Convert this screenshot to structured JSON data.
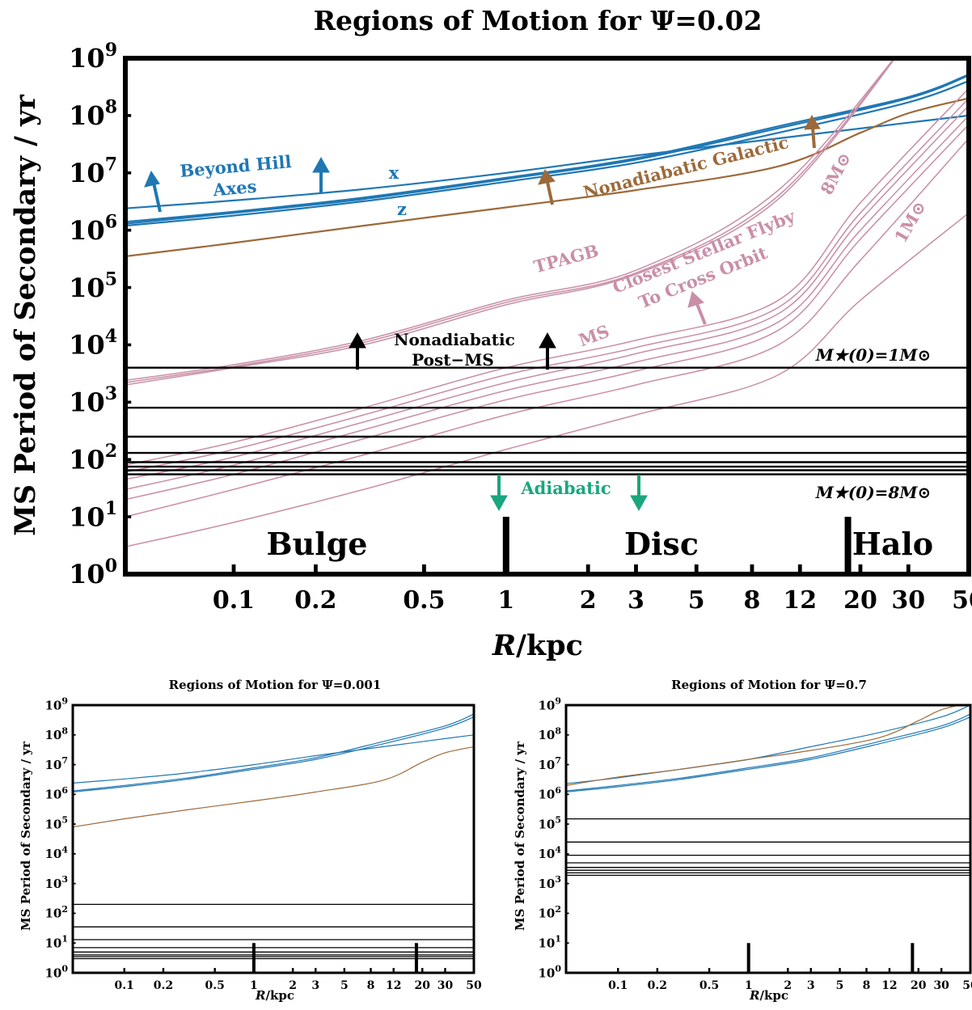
{
  "colors": {
    "hill": "#1f77b4",
    "galactic": "#9c6a3a",
    "stellar": "#c98fa8",
    "adiabatic": "#1aa67e",
    "axes": "#000000"
  },
  "xtick_labels": [
    "0.1",
    "0.2",
    "0.5",
    "1",
    "2",
    "3",
    "5",
    "8",
    "12",
    "20",
    "30",
    "50"
  ],
  "ytick_exponents": [
    "0",
    "1",
    "2",
    "3",
    "4",
    "5",
    "6",
    "7",
    "8",
    "9"
  ],
  "ytick_base": "10",
  "main": {
    "title": "Regions of Motion for Ψ=0.02",
    "xlabel": "R/kpc",
    "ylabel": "MS Period of Secondary / yr",
    "annotations": {
      "beyond_hill_1": "Beyond Hill",
      "beyond_hill_2": "Axes",
      "x": "x",
      "z": "z",
      "nonadiabatic_galactic": "Nonadiabatic Galactic",
      "tpagb": "TPAGB",
      "flyby_1": "Closest Stellar Flyby",
      "flyby_2": "To Cross Orbit",
      "ms": "MS",
      "m8": "8M⊙",
      "m1": "1M⊙",
      "nonadiabatic_postms_1": "Nonadiabatic",
      "nonadiabatic_postms_2": "Post−MS",
      "mstar1": "M★(0)=1M⊙",
      "mstar8": "M★(0)=8M⊙",
      "adiabatic": "Adiabatic",
      "bulge": "Bulge",
      "disc": "Disc",
      "halo": "Halo"
    }
  },
  "small_left": {
    "title": "Regions of Motion for Ψ=0.001",
    "xlabel": "R/kpc",
    "ylabel": "MS Period of Secondary / yr"
  },
  "small_right": {
    "title": "Regions of Motion for Ψ=0.7",
    "xlabel": "R/kpc",
    "ylabel": "MS Period of Secondary / yr"
  },
  "chart_data": [
    {
      "type": "line",
      "panel": "main",
      "title": "Regions of Motion for Ψ=0.02",
      "xlabel": "R/kpc",
      "ylabel": "MS Period of Secondary / yr",
      "xscale": "log",
      "yscale": "log",
      "xlim": [
        0.04,
        50
      ],
      "ylim": [
        1,
        1000000000
      ],
      "region_boundaries_kpc": [
        1,
        18
      ],
      "series": [
        {
          "name": "x",
          "group": "hill",
          "x": [
            0.04,
            0.1,
            0.3,
            1,
            3,
            10,
            30,
            50
          ],
          "y": [
            2400000,
            3300000,
            5200000,
            10000000,
            20000000,
            40000000,
            75000000,
            100000000
          ]
        },
        {
          "name": "z",
          "group": "hill",
          "x": [
            0.04,
            0.1,
            0.3,
            1,
            3,
            10,
            30,
            50
          ],
          "y": [
            1200000,
            1800000,
            3200000,
            7000000,
            15000000,
            50000000,
            170000000,
            400000000
          ]
        },
        {
          "group": "hill",
          "x": [
            0.04,
            0.1,
            0.3,
            1,
            3,
            10,
            30,
            50
          ],
          "y": [
            1300000,
            2000000,
            3500000,
            7800000,
            17000000,
            60000000,
            200000000,
            500000000
          ]
        },
        {
          "group": "hill",
          "x": [
            0.04,
            0.1,
            0.3,
            1,
            3,
            10,
            30,
            50
          ],
          "y": [
            1400000,
            2100000,
            3700000,
            8200000,
            18000000,
            65000000,
            210000000,
            520000000
          ]
        },
        {
          "name": "Nonadiabatic Galactic",
          "group": "galactic",
          "x": [
            0.04,
            0.1,
            0.3,
            1,
            3,
            10,
            20,
            30,
            50
          ],
          "y": [
            350000,
            600000,
            1200000,
            2500000,
            5000000,
            13000000,
            50000000,
            110000000,
            200000000
          ]
        },
        {
          "name": "TPAGB",
          "group": "stellar",
          "x": [
            0.04,
            0.1,
            0.3,
            1,
            3,
            10,
            30
          ],
          "y": [
            2400,
            4500,
            12000,
            60000,
            200000,
            5000000,
            2000000000
          ]
        },
        {
          "group": "stellar",
          "x": [
            0.04,
            0.1,
            0.3,
            1,
            3,
            10,
            30
          ],
          "y": [
            2200,
            4200,
            11000,
            55000,
            180000,
            4000000,
            2000000000
          ]
        },
        {
          "group": "stellar",
          "x": [
            0.04,
            0.1,
            0.3,
            1,
            3,
            10,
            30
          ],
          "y": [
            2000,
            4000,
            10000,
            50000,
            170000,
            3500000,
            2000000000
          ]
        },
        {
          "name": "MS 8M⊙",
          "group": "stellar",
          "x": [
            0.04,
            0.1,
            0.3,
            1,
            3,
            10,
            20,
            50
          ],
          "y": [
            80,
            200,
            800,
            4000,
            12000,
            60000,
            3000000,
            300000000
          ]
        },
        {
          "group": "stellar",
          "x": [
            0.04,
            0.1,
            0.3,
            1,
            3,
            10,
            20,
            50
          ],
          "y": [
            60,
            150,
            600,
            3000,
            9000,
            45000,
            2000000,
            200000000
          ]
        },
        {
          "group": "stellar",
          "x": [
            0.04,
            0.1,
            0.3,
            1,
            3,
            10,
            20,
            50
          ],
          "y": [
            45,
            110,
            450,
            2200,
            7000,
            35000,
            1500000,
            150000000
          ]
        },
        {
          "group": "stellar",
          "x": [
            0.04,
            0.1,
            0.3,
            1,
            3,
            10,
            20,
            50
          ],
          "y": [
            30,
            80,
            330,
            1600,
            5000,
            25000,
            1000000,
            100000000
          ]
        },
        {
          "group": "stellar",
          "x": [
            0.04,
            0.1,
            0.3,
            1,
            3,
            10,
            20,
            50
          ],
          "y": [
            20,
            55,
            230,
            1100,
            3500,
            18000,
            700000,
            70000000
          ]
        },
        {
          "group": "stellar",
          "x": [
            0.04,
            0.1,
            0.3,
            1,
            3,
            10,
            20,
            50
          ],
          "y": [
            10,
            30,
            120,
            600,
            2000,
            10000,
            300000,
            40000000
          ]
        },
        {
          "name": "MS 1M⊙",
          "group": "stellar",
          "x": [
            0.04,
            0.1,
            0.3,
            1,
            3,
            10,
            20,
            50
          ],
          "y": [
            3,
            8,
            30,
            150,
            600,
            3000,
            60000,
            2000000
          ]
        },
        {
          "name": "M★(0)=1M⊙",
          "group": "postms",
          "x": [
            0.04,
            50
          ],
          "y": [
            4000,
            4000
          ]
        },
        {
          "group": "postms",
          "x": [
            0.04,
            50
          ],
          "y": [
            800,
            800
          ]
        },
        {
          "group": "postms",
          "x": [
            0.04,
            50
          ],
          "y": [
            250,
            250
          ]
        },
        {
          "group": "postms",
          "x": [
            0.04,
            50
          ],
          "y": [
            130,
            130
          ]
        },
        {
          "group": "postms",
          "x": [
            0.04,
            50
          ],
          "y": [
            90,
            90
          ]
        },
        {
          "group": "postms",
          "x": [
            0.04,
            50
          ],
          "y": [
            75,
            75
          ]
        },
        {
          "group": "postms",
          "x": [
            0.04,
            50
          ],
          "y": [
            65,
            65
          ]
        },
        {
          "name": "M★(0)=8M⊙",
          "group": "postms",
          "x": [
            0.04,
            50
          ],
          "y": [
            55,
            55
          ]
        }
      ]
    },
    {
      "type": "line",
      "panel": "small_left",
      "title": "Regions of Motion for Ψ=0.001",
      "xlabel": "R/kpc",
      "ylabel": "MS Period of Secondary / yr",
      "xscale": "log",
      "yscale": "log",
      "xlim": [
        0.04,
        50
      ],
      "ylim": [
        1,
        1000000000
      ],
      "region_boundaries_kpc": [
        1,
        18
      ],
      "series": [
        {
          "group": "hill",
          "x": [
            0.04,
            0.1,
            0.3,
            1,
            3,
            10,
            30,
            50
          ],
          "y": [
            2400000,
            3300000,
            5200000,
            10000000,
            20000000,
            40000000,
            75000000,
            100000000
          ]
        },
        {
          "group": "hill",
          "x": [
            0.04,
            0.1,
            0.3,
            1,
            3,
            10,
            30,
            50
          ],
          "y": [
            1200000,
            1800000,
            3200000,
            7000000,
            15000000,
            50000000,
            170000000,
            400000000
          ]
        },
        {
          "group": "hill",
          "x": [
            0.04,
            0.1,
            0.3,
            1,
            3,
            10,
            30,
            50
          ],
          "y": [
            1300000,
            2000000,
            3500000,
            7800000,
            17000000,
            60000000,
            200000000,
            500000000
          ]
        },
        {
          "group": "galactic",
          "x": [
            0.04,
            0.1,
            0.3,
            1,
            3,
            10,
            20,
            30,
            50
          ],
          "y": [
            80000,
            150000,
            300000,
            600000,
            1200000,
            3000000,
            12000000,
            25000000,
            40000000
          ]
        },
        {
          "group": "postms",
          "x": [
            0.04,
            50
          ],
          "y": [
            200,
            200
          ]
        },
        {
          "group": "postms",
          "x": [
            0.04,
            50
          ],
          "y": [
            35,
            35
          ]
        },
        {
          "group": "postms",
          "x": [
            0.04,
            50
          ],
          "y": [
            13,
            13
          ]
        },
        {
          "group": "postms",
          "x": [
            0.04,
            50
          ],
          "y": [
            7,
            7
          ]
        },
        {
          "group": "postms",
          "x": [
            0.04,
            50
          ],
          "y": [
            5,
            5
          ]
        },
        {
          "group": "postms",
          "x": [
            0.04,
            50
          ],
          "y": [
            4,
            4
          ]
        },
        {
          "group": "postms",
          "x": [
            0.04,
            50
          ],
          "y": [
            3.5,
            3.5
          ]
        },
        {
          "group": "postms",
          "x": [
            0.04,
            50
          ],
          "y": [
            3,
            3
          ]
        }
      ]
    },
    {
      "type": "line",
      "panel": "small_right",
      "title": "Regions of Motion for Ψ=0.7",
      "xlabel": "R/kpc",
      "ylabel": "MS Period of Secondary / yr",
      "xscale": "log",
      "yscale": "log",
      "xlim": [
        0.04,
        50
      ],
      "ylim": [
        1,
        1000000000
      ],
      "region_boundaries_kpc": [
        1,
        18
      ],
      "series": [
        {
          "group": "hill",
          "x": [
            0.04,
            0.1,
            0.3,
            1,
            3,
            10,
            30,
            50
          ],
          "y": [
            2300000,
            3600000,
            7000000,
            15000000,
            40000000,
            120000000,
            400000000,
            1000000000
          ]
        },
        {
          "group": "hill",
          "x": [
            0.04,
            0.1,
            0.3,
            1,
            3,
            10,
            30,
            50
          ],
          "y": [
            1200000,
            1800000,
            3200000,
            7000000,
            15000000,
            50000000,
            170000000,
            400000000
          ]
        },
        {
          "group": "hill",
          "x": [
            0.04,
            0.1,
            0.3,
            1,
            3,
            10,
            30,
            50
          ],
          "y": [
            1300000,
            2000000,
            3500000,
            7800000,
            17000000,
            60000000,
            200000000,
            500000000
          ]
        },
        {
          "group": "galactic",
          "x": [
            0.04,
            0.1,
            0.3,
            1,
            3,
            10,
            20,
            30,
            50
          ],
          "y": [
            2000000,
            3800000,
            7000000,
            15000000,
            30000000,
            80000000,
            300000000,
            700000000,
            1200000000
          ]
        },
        {
          "group": "postms",
          "x": [
            0.04,
            50
          ],
          "y": [
            150000,
            150000
          ]
        },
        {
          "group": "postms",
          "x": [
            0.04,
            50
          ],
          "y": [
            25000,
            25000
          ]
        },
        {
          "group": "postms",
          "x": [
            0.04,
            50
          ],
          "y": [
            9000,
            9000
          ]
        },
        {
          "group": "postms",
          "x": [
            0.04,
            50
          ],
          "y": [
            5000,
            5000
          ]
        },
        {
          "group": "postms",
          "x": [
            0.04,
            50
          ],
          "y": [
            3500,
            3500
          ]
        },
        {
          "group": "postms",
          "x": [
            0.04,
            50
          ],
          "y": [
            2800,
            2800
          ]
        },
        {
          "group": "postms",
          "x": [
            0.04,
            50
          ],
          "y": [
            2300,
            2300
          ]
        },
        {
          "group": "postms",
          "x": [
            0.04,
            50
          ],
          "y": [
            1900,
            1900
          ]
        }
      ]
    }
  ]
}
